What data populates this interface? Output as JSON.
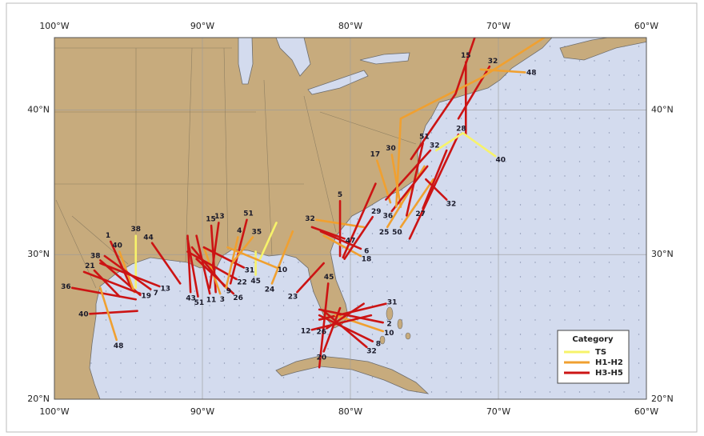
{
  "chart_data": {
    "type": "map",
    "xlim": [
      -100,
      -60
    ],
    "ylim": [
      20,
      45
    ],
    "xticks": [
      {
        "value": -100,
        "label": "100°W"
      },
      {
        "value": -90,
        "label": "90°W"
      },
      {
        "value": -80,
        "label": "80°W"
      },
      {
        "value": -70,
        "label": "70°W"
      },
      {
        "value": -60,
        "label": "60°W"
      }
    ],
    "yticks": [
      {
        "value": 20,
        "label": "20°N"
      },
      {
        "value": 30,
        "label": "30°N"
      },
      {
        "value": 40,
        "label": "40°N"
      }
    ],
    "grid": true,
    "legend": {
      "title": "Category",
      "position": "lower right",
      "items": [
        {
          "name": "TS",
          "color": "#f7f36a"
        },
        {
          "name": "H1-H2",
          "color": "#f0a030"
        },
        {
          "name": "H3-H5",
          "color": "#cc1414"
        }
      ]
    },
    "tracks": [
      {
        "id": 36,
        "category": "H3-H5",
        "points": [
          [
            -98.8,
            27.7
          ],
          [
            -94.5,
            26.9
          ]
        ]
      },
      {
        "id": 40,
        "category": "H3-H5",
        "points": [
          [
            -97.6,
            25.9
          ],
          [
            -94.4,
            26.1
          ]
        ]
      },
      {
        "id": 48,
        "category": "H1-H2",
        "points": [
          [
            -95.8,
            24.1
          ],
          [
            -96.9,
            27.7
          ]
        ]
      },
      {
        "id": 21,
        "category": "H3-H5",
        "points": [
          [
            -97.3,
            28.9
          ],
          [
            -95.6,
            27.1
          ]
        ]
      },
      {
        "id": 38,
        "category": "H3-H5",
        "points": [
          [
            -96.9,
            29.6
          ],
          [
            -94.2,
            27.2
          ]
        ]
      },
      {
        "id": 1,
        "category": "H3-H5",
        "points": [
          [
            -96.2,
            30.9
          ],
          [
            -94.8,
            27.7
          ]
        ]
      },
      {
        "id": 40,
        "category": "H1-H2",
        "points": [
          [
            -95.6,
            30.2
          ],
          [
            -94.6,
            27.4
          ]
        ]
      },
      {
        "id": 38,
        "category": "TS",
        "points": [
          [
            -94.5,
            31.3
          ],
          [
            -94.5,
            27.7
          ]
        ]
      },
      {
        "id": 19,
        "category": "H3-H5",
        "points": [
          [
            -94.2,
            27.3
          ],
          [
            -98.0,
            28.8
          ]
        ]
      },
      {
        "id": 44,
        "category": "H3-H5",
        "points": [
          [
            -93.4,
            30.8
          ],
          [
            -91.5,
            28.0
          ]
        ]
      },
      {
        "id": 7,
        "category": "H3-H5",
        "points": [
          [
            -93.5,
            27.6
          ],
          [
            -96.6,
            29.9
          ]
        ]
      },
      {
        "id": 13,
        "category": "H3-H5",
        "points": [
          [
            -92.9,
            27.8
          ],
          [
            -96.9,
            29.4
          ]
        ]
      },
      {
        "id": 15,
        "category": "H3-H5",
        "points": [
          [
            -89.4,
            32.0
          ],
          [
            -89.1,
            27.4
          ]
        ]
      },
      {
        "id": 13,
        "category": "H3-H5",
        "points": [
          [
            -88.9,
            32.2
          ],
          [
            -89.5,
            27.7
          ]
        ]
      },
      {
        "id": 51,
        "category": "H3-H5",
        "points": [
          [
            -90.3,
            27.1
          ],
          [
            -91.0,
            31.1
          ]
        ]
      },
      {
        "id": 43,
        "category": "H3-H5",
        "points": [
          [
            -90.8,
            27.4
          ],
          [
            -91.0,
            31.3
          ]
        ]
      },
      {
        "id": 11,
        "category": "H3-H5",
        "points": [
          [
            -89.5,
            27.3
          ],
          [
            -90.4,
            31.3
          ]
        ]
      },
      {
        "id": 3,
        "category": "H1-H2",
        "points": [
          [
            -88.8,
            27.3
          ],
          [
            -89.9,
            30.5
          ]
        ]
      },
      {
        "id": 9,
        "category": "H3-H5",
        "points": [
          [
            -88.5,
            27.8
          ],
          [
            -90.7,
            30.5
          ]
        ]
      },
      {
        "id": 26,
        "category": "H3-H5",
        "points": [
          [
            -87.9,
            27.3
          ],
          [
            -90.4,
            29.7
          ]
        ]
      },
      {
        "id": 22,
        "category": "H3-H5",
        "points": [
          [
            -87.7,
            28.3
          ],
          [
            -91.0,
            30.2
          ]
        ]
      },
      {
        "id": 51,
        "category": "H3-H5",
        "points": [
          [
            -87.0,
            32.4
          ],
          [
            -88.1,
            28.0
          ]
        ]
      },
      {
        "id": 4,
        "category": "H1-H2",
        "points": [
          [
            -87.6,
            31.2
          ],
          [
            -88.4,
            27.7
          ]
        ]
      },
      {
        "id": 31,
        "category": "H3-H5",
        "points": [
          [
            -87.2,
            29.1
          ],
          [
            -89.9,
            30.5
          ]
        ]
      },
      {
        "id": 35,
        "category": "H1-H2",
        "points": [
          [
            -86.6,
            31.2
          ],
          [
            -88.0,
            29.4
          ]
        ]
      },
      {
        "id": 45,
        "category": "TS",
        "points": [
          [
            -86.4,
            28.6
          ],
          [
            -86.4,
            30.2
          ]
        ]
      },
      {
        "id": 10,
        "category": "H1-H2",
        "points": [
          [
            -85.0,
            29.1
          ],
          [
            -88.3,
            30.5
          ]
        ]
      },
      {
        "id": 24,
        "category": "H1-H2",
        "points": [
          [
            -85.3,
            28.0
          ],
          [
            -83.9,
            31.6
          ]
        ]
      },
      {
        "id": null,
        "category": "TS",
        "points": [
          [
            -85.0,
            32.2
          ],
          [
            -86.1,
            29.7
          ]
        ]
      },
      {
        "id": 23,
        "category": "H3-H5",
        "points": [
          [
            -83.6,
            27.4
          ],
          [
            -81.8,
            29.4
          ]
        ]
      },
      {
        "id": 32,
        "category": "H1-H2",
        "points": [
          [
            -82.3,
            32.4
          ],
          [
            -79.1,
            31.9
          ]
        ]
      },
      {
        "id": 5,
        "category": "H3-H5",
        "points": [
          [
            -80.7,
            33.7
          ],
          [
            -80.7,
            29.9
          ]
        ]
      },
      {
        "id": 47,
        "category": "H3-H5",
        "points": [
          [
            -80.4,
            31.1
          ],
          [
            -82.6,
            31.9
          ]
        ]
      },
      {
        "id": 6,
        "category": "H3-H5",
        "points": [
          [
            -79.3,
            30.4
          ],
          [
            -82.0,
            31.6
          ]
        ]
      },
      {
        "id": 18,
        "category": "H1-H2",
        "points": [
          [
            -79.3,
            29.9
          ],
          [
            -81.8,
            31.3
          ]
        ]
      },
      {
        "id": 29,
        "category": "H3-H5",
        "points": [
          [
            -78.5,
            32.6
          ],
          [
            -80.4,
            29.7
          ]
        ]
      },
      {
        "id": null,
        "category": "H3-H5",
        "points": [
          [
            -80.5,
            29.8
          ],
          [
            -78.3,
            34.9
          ]
        ]
      },
      {
        "id": 17,
        "category": "H1-H2",
        "points": [
          [
            -78.2,
            36.5
          ],
          [
            -77.3,
            33.6
          ]
        ]
      },
      {
        "id": 30,
        "category": "H1-H2",
        "points": [
          [
            -77.2,
            36.9
          ],
          [
            -76.6,
            33.3
          ]
        ]
      },
      {
        "id": 25,
        "category": "H1-H2",
        "points": [
          [
            -77.5,
            31.9
          ],
          [
            -75.0,
            36.1
          ]
        ]
      },
      {
        "id": 36,
        "category": "H3-H5",
        "points": [
          [
            -77.2,
            33.0
          ],
          [
            -74.8,
            36.1
          ]
        ]
      },
      {
        "id": 50,
        "category": "H1-H2",
        "points": [
          [
            -76.6,
            31.9
          ],
          [
            -74.4,
            35.2
          ]
        ]
      },
      {
        "id": 51,
        "category": "H3-H5",
        "points": [
          [
            -75.1,
            37.7
          ],
          [
            -76.2,
            32.7
          ]
        ]
      },
      {
        "id": 27,
        "category": "H3-H5",
        "points": [
          [
            -75.1,
            33.2
          ],
          [
            -73.5,
            37.2
          ]
        ]
      },
      {
        "id": 32,
        "category": "H3-H5",
        "points": [
          [
            -74.6,
            37.2
          ],
          [
            -77.6,
            33.8
          ]
        ]
      },
      {
        "id": 32,
        "category": "H3-H5",
        "points": [
          [
            -73.5,
            33.8
          ],
          [
            -74.9,
            35.2
          ]
        ]
      },
      {
        "id": 28,
        "category": "H3-H5",
        "points": [
          [
            -72.7,
            38.3
          ],
          [
            -76.0,
            31.1
          ]
        ]
      },
      {
        "id": 15,
        "category": "H3-H5",
        "points": [
          [
            -72.2,
            43.3
          ],
          [
            -72.2,
            38.3
          ]
        ]
      },
      {
        "id": 32,
        "category": "H3-H5",
        "points": [
          [
            -70.6,
            43.0
          ],
          [
            -72.7,
            39.4
          ]
        ]
      },
      {
        "id": 48,
        "category": "H1-H2",
        "points": [
          [
            -68.2,
            42.6
          ],
          [
            -71.2,
            42.8
          ]
        ]
      },
      {
        "id": 40,
        "category": "TS",
        "points": [
          [
            -70.2,
            36.8
          ],
          [
            -72.4,
            38.4
          ],
          [
            -74.2,
            37.2
          ]
        ]
      },
      {
        "id": null,
        "category": "H1-H2",
        "points": [
          [
            -66.9,
            45.0
          ],
          [
            -71.2,
            42.2
          ],
          [
            -74.5,
            40.5
          ],
          [
            -76.6,
            39.4
          ],
          [
            -76.9,
            33.3
          ]
        ]
      },
      {
        "id": null,
        "category": "H3-H5",
        "points": [
          [
            -71.6,
            45.0
          ],
          [
            -72.9,
            41.1
          ],
          [
            -75.9,
            36.6
          ]
        ]
      },
      {
        "id": 45,
        "category": "H3-H5",
        "points": [
          [
            -81.5,
            28.0
          ],
          [
            -82.1,
            22.2
          ]
        ]
      },
      {
        "id": 31,
        "category": "H3-H5",
        "points": [
          [
            -77.6,
            26.6
          ],
          [
            -82.1,
            25.5
          ]
        ]
      },
      {
        "id": 2,
        "category": "H3-H5",
        "points": [
          [
            -77.8,
            25.3
          ],
          [
            -82.1,
            26.2
          ]
        ]
      },
      {
        "id": 10,
        "category": "H1-H2",
        "points": [
          [
            -77.8,
            24.7
          ],
          [
            -81.0,
            25.8
          ]
        ]
      },
      {
        "id": 8,
        "category": "H3-H5",
        "points": [
          [
            -78.5,
            24.0
          ],
          [
            -82.1,
            25.8
          ]
        ]
      },
      {
        "id": 32,
        "category": "H3-H5",
        "points": [
          [
            -78.9,
            23.6
          ],
          [
            -81.8,
            26.1
          ]
        ]
      },
      {
        "id": 26,
        "category": "H3-H5",
        "points": [
          [
            -81.6,
            24.9
          ],
          [
            -79.1,
            26.6
          ]
        ]
      },
      {
        "id": 12,
        "category": "H3-H5",
        "points": [
          [
            -82.6,
            24.8
          ],
          [
            -78.6,
            25.8
          ]
        ]
      },
      {
        "id": 20,
        "category": "H3-H5",
        "points": [
          [
            -81.8,
            23.3
          ],
          [
            -80.7,
            26.3
          ]
        ]
      }
    ]
  }
}
